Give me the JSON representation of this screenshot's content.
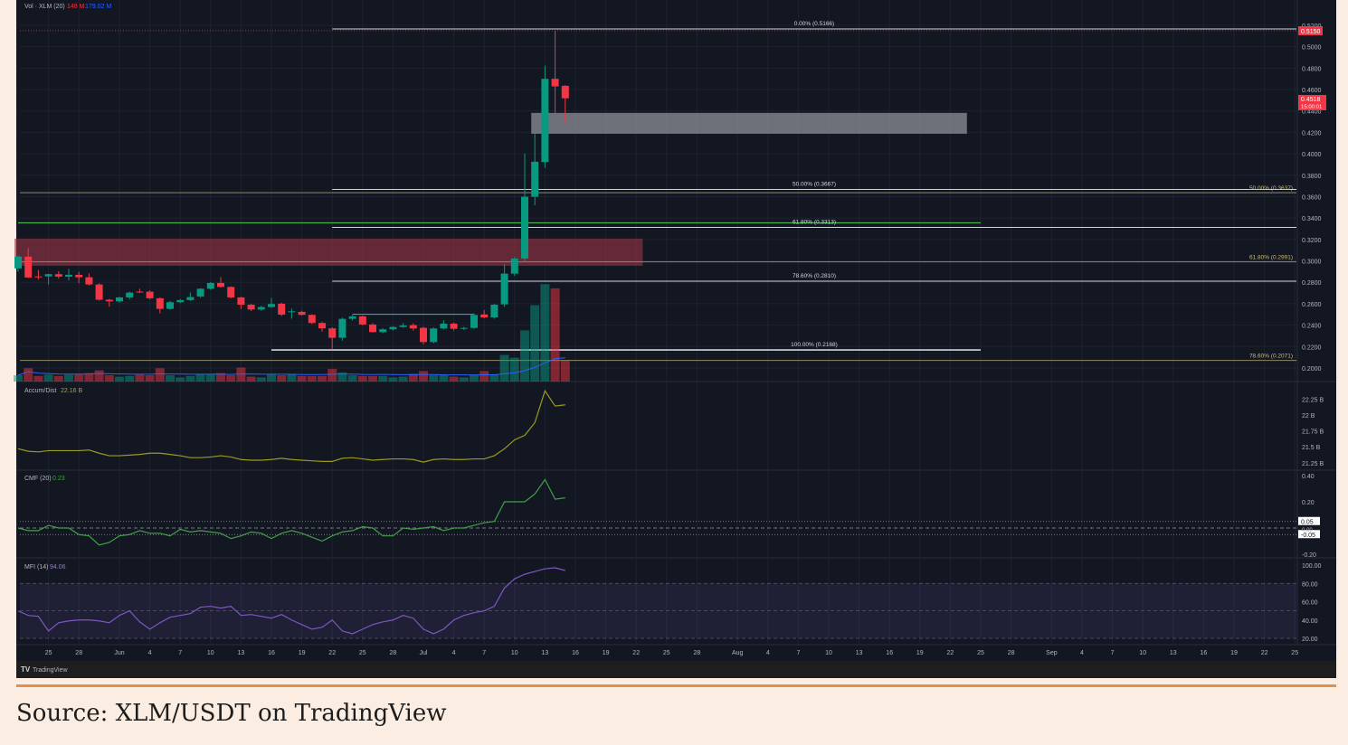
{
  "colors": {
    "up": "#089981",
    "down": "#f23645",
    "background": "#131722",
    "grid": "#1e2230",
    "axis_text": "#b2b5be",
    "fib": "#d1d4dc",
    "fib2": "#c9bc77",
    "volume_ma": "#2962ff",
    "ad_line": "#9a9a1f",
    "cmf_line": "#43a047",
    "mfi_line": "#7e57c2",
    "caption_rule": "#e0914a"
  },
  "legend": {
    "volume": {
      "label": "Vol · XLM (20)",
      "value": "148 M",
      "ma_value": "179.02 M"
    },
    "accum_dist": {
      "label": "Accum/Dist",
      "value": "22.16 B"
    },
    "cmf": {
      "label": "CMF (20)",
      "value": "0.23"
    },
    "mfi": {
      "label": "MFI (14)",
      "value": "94.06"
    }
  },
  "price_badges": {
    "high": "0.5150",
    "last": "0.4518",
    "countdown": "15:00:01"
  },
  "branding": "TradingView",
  "caption": "Source: XLM/USDT on TradingView",
  "chart_data": {
    "type": "candlestick",
    "symbol": "XLM/USDT",
    "price_axis": {
      "ticks": [
        "0.5200",
        "0.5000",
        "0.4800",
        "0.4600",
        "0.4400",
        "0.4200",
        "0.4000",
        "0.3800",
        "0.3600",
        "0.3400",
        "0.3200",
        "0.3000",
        "0.2800",
        "0.2600",
        "0.2400",
        "0.2200",
        "0.2000"
      ],
      "range": [
        0.19,
        0.525
      ]
    },
    "time_axis": [
      {
        "label": "22",
        "date": "05-22"
      },
      {
        "label": "25",
        "date": "05-25"
      },
      {
        "label": "28",
        "date": "05-28"
      },
      {
        "label": "Jun",
        "date": "06-01"
      },
      {
        "label": "4",
        "date": "06-04"
      },
      {
        "label": "7",
        "date": "06-07"
      },
      {
        "label": "10",
        "date": "06-10"
      },
      {
        "label": "13",
        "date": "06-13"
      },
      {
        "label": "16",
        "date": "06-16"
      },
      {
        "label": "19",
        "date": "06-19"
      },
      {
        "label": "22",
        "date": "06-22"
      },
      {
        "label": "25",
        "date": "06-25"
      },
      {
        "label": "28",
        "date": "06-28"
      },
      {
        "label": "Jul",
        "date": "07-01"
      },
      {
        "label": "4",
        "date": "07-04"
      },
      {
        "label": "7",
        "date": "07-07"
      },
      {
        "label": "10",
        "date": "07-10"
      },
      {
        "label": "13",
        "date": "07-13"
      },
      {
        "label": "16",
        "date": "07-16"
      },
      {
        "label": "19",
        "date": "07-19"
      },
      {
        "label": "22",
        "date": "07-22"
      },
      {
        "label": "25",
        "date": "07-25"
      },
      {
        "label": "28",
        "date": "07-28"
      },
      {
        "label": "Aug",
        "date": "08-01"
      },
      {
        "label": "4",
        "date": "08-04"
      },
      {
        "label": "7",
        "date": "08-07"
      },
      {
        "label": "10",
        "date": "08-10"
      },
      {
        "label": "13",
        "date": "08-13"
      },
      {
        "label": "16",
        "date": "08-16"
      },
      {
        "label": "19",
        "date": "08-19"
      },
      {
        "label": "22",
        "date": "08-22"
      },
      {
        "label": "25",
        "date": "08-25"
      },
      {
        "label": "28",
        "date": "08-28"
      },
      {
        "label": "Sep",
        "date": "09-01"
      },
      {
        "label": "4",
        "date": "09-04"
      },
      {
        "label": "7",
        "date": "09-07"
      },
      {
        "label": "10",
        "date": "09-10"
      },
      {
        "label": "13",
        "date": "09-13"
      },
      {
        "label": "16",
        "date": "09-16"
      },
      {
        "label": "19",
        "date": "09-19"
      },
      {
        "label": "22",
        "date": "09-22"
      },
      {
        "label": "25",
        "date": "09-25"
      }
    ],
    "candles_columns": [
      "date",
      "open",
      "high",
      "low",
      "close",
      "volume_M"
    ],
    "candles": [
      [
        "05-22",
        0.293,
        0.305,
        0.29,
        0.304,
        45
      ],
      [
        "05-23",
        0.304,
        0.312,
        0.284,
        0.2845,
        95
      ],
      [
        "05-24",
        0.2855,
        0.2915,
        0.2825,
        0.2847,
        40
      ],
      [
        "05-25",
        0.2855,
        0.288,
        0.2777,
        0.2876,
        50
      ],
      [
        "05-26",
        0.2876,
        0.2904,
        0.2834,
        0.2853,
        40
      ],
      [
        "05-27",
        0.2853,
        0.2927,
        0.2817,
        0.287,
        50
      ],
      [
        "05-28",
        0.287,
        0.2898,
        0.2791,
        0.2847,
        55
      ],
      [
        "05-29",
        0.2847,
        0.2884,
        0.277,
        0.278,
        60
      ],
      [
        "05-30",
        0.278,
        0.279,
        0.263,
        0.2637,
        80
      ],
      [
        "05-31",
        0.2637,
        0.2645,
        0.2572,
        0.2622,
        45
      ],
      [
        "06-01",
        0.2622,
        0.2665,
        0.261,
        0.2659,
        35
      ],
      [
        "06-02",
        0.2659,
        0.2712,
        0.264,
        0.2704,
        40
      ],
      [
        "06-03",
        0.2713,
        0.274,
        0.27,
        0.271,
        50
      ],
      [
        "06-04",
        0.2713,
        0.2725,
        0.264,
        0.2651,
        45
      ],
      [
        "06-05",
        0.2651,
        0.266,
        0.251,
        0.2552,
        95
      ],
      [
        "06-06",
        0.2552,
        0.2625,
        0.2545,
        0.2614,
        45
      ],
      [
        "06-07",
        0.2614,
        0.2645,
        0.2605,
        0.2634,
        30
      ],
      [
        "06-08",
        0.2634,
        0.2705,
        0.2625,
        0.2662,
        40
      ],
      [
        "06-09",
        0.2668,
        0.2745,
        0.2655,
        0.274,
        55
      ],
      [
        "06-10",
        0.274,
        0.2802,
        0.273,
        0.2794,
        55
      ],
      [
        "06-11",
        0.2794,
        0.2848,
        0.275,
        0.2757,
        60
      ],
      [
        "06-12",
        0.2757,
        0.2762,
        0.265,
        0.2659,
        45
      ],
      [
        "06-13",
        0.2659,
        0.2665,
        0.255,
        0.2591,
        100
      ],
      [
        "06-14",
        0.2591,
        0.2598,
        0.253,
        0.2546,
        35
      ],
      [
        "06-15",
        0.2546,
        0.258,
        0.2535,
        0.2569,
        30
      ],
      [
        "06-16",
        0.2569,
        0.2655,
        0.256,
        0.2597,
        55
      ],
      [
        "06-17",
        0.26,
        0.261,
        0.2485,
        0.2498,
        45
      ],
      [
        "06-18",
        0.2524,
        0.2555,
        0.246,
        0.2529,
        55
      ],
      [
        "06-19",
        0.2524,
        0.2535,
        0.249,
        0.2496,
        40
      ],
      [
        "06-20",
        0.2496,
        0.25,
        0.241,
        0.242,
        40
      ],
      [
        "06-21",
        0.242,
        0.2432,
        0.234,
        0.237,
        40
      ],
      [
        "06-22",
        0.237,
        0.238,
        0.2171,
        0.2282,
        90
      ],
      [
        "06-23",
        0.2282,
        0.247,
        0.2255,
        0.2459,
        65
      ],
      [
        "06-24",
        0.2459,
        0.2495,
        0.2445,
        0.2482,
        45
      ],
      [
        "06-25",
        0.2482,
        0.2488,
        0.24,
        0.2406,
        40
      ],
      [
        "06-26",
        0.2406,
        0.242,
        0.233,
        0.2335,
        40
      ],
      [
        "06-27",
        0.2335,
        0.2372,
        0.2325,
        0.2361,
        40
      ],
      [
        "06-28",
        0.2361,
        0.239,
        0.235,
        0.2383,
        30
      ],
      [
        "06-29",
        0.2383,
        0.242,
        0.2375,
        0.2397,
        35
      ],
      [
        "06-30",
        0.24,
        0.2418,
        0.235,
        0.2369,
        55
      ],
      [
        "07-01",
        0.2375,
        0.2385,
        0.222,
        0.2242,
        75
      ],
      [
        "07-02",
        0.2242,
        0.2378,
        0.223,
        0.2369,
        45
      ],
      [
        "07-03",
        0.2369,
        0.2445,
        0.236,
        0.2414,
        45
      ],
      [
        "07-04",
        0.2414,
        0.2425,
        0.235,
        0.2366,
        35
      ],
      [
        "07-05",
        0.2366,
        0.2385,
        0.2355,
        0.2374,
        30
      ],
      [
        "07-06",
        0.2374,
        0.251,
        0.2365,
        0.2495,
        50
      ],
      [
        "07-07",
        0.25,
        0.254,
        0.2465,
        0.2472,
        75
      ],
      [
        "07-08",
        0.2472,
        0.2597,
        0.246,
        0.2591,
        50
      ],
      [
        "07-09",
        0.2594,
        0.2969,
        0.257,
        0.2881,
        190
      ],
      [
        "07-10",
        0.2881,
        0.3035,
        0.286,
        0.3022,
        170
      ],
      [
        "07-11",
        0.3022,
        0.4002,
        0.299,
        0.3599,
        365
      ],
      [
        "07-12",
        0.3599,
        0.4185,
        0.352,
        0.3926,
        545
      ],
      [
        "07-13",
        0.3923,
        0.4823,
        0.387,
        0.47,
        695
      ],
      [
        "07-14",
        0.47,
        0.515,
        0.4382,
        0.4629,
        665
      ],
      [
        "07-15",
        0.4635,
        0.464,
        0.4297,
        0.4518,
        148
      ]
    ],
    "fib_retracement_1": {
      "from": "06-22",
      "levels": [
        {
          "label": "0.00% (0.5166)",
          "price": 0.5166
        },
        {
          "label": "50.00% (0.3667)",
          "price": 0.3667
        },
        {
          "label": "61.80% (0.3313)",
          "price": 0.3313
        },
        {
          "label": "78.60% (0.2810)",
          "price": 0.281
        },
        {
          "label": "100.00% (0.2168)",
          "price": 0.2168,
          "from": "06-16",
          "to": "08-25"
        }
      ]
    },
    "fib_retracement_2": {
      "levels": [
        {
          "label": "50.00% (0.3637)",
          "price": 0.3637
        },
        {
          "label": "61.80% (0.2991)",
          "price": 0.2991
        },
        {
          "label": "78.60% (0.2071)",
          "price": 0.2071
        }
      ]
    },
    "zones": [
      {
        "name": "supply-zone",
        "from": "05-22",
        "to": "07-23",
        "top": 0.3208,
        "bottom": 0.2954,
        "color": "rgba(150,52,66,0.62)"
      },
      {
        "name": "gray-zone",
        "from": "07-12",
        "to": "08-24",
        "top": 0.4382,
        "bottom": 0.4187,
        "color": "rgba(150,152,158,0.7)"
      }
    ],
    "horizontal_lines": [
      {
        "name": "green-level-line",
        "price": 0.3355,
        "from": "05-22",
        "to": "08-25",
        "color": "#4caf50"
      },
      {
        "name": "range-high-line",
        "price": 0.2502,
        "from": "06-24",
        "to": "07-06",
        "color": "#2ba3c9"
      }
    ],
    "accum_dist": {
      "axis": [
        "22.25 B",
        "22 B",
        "21.75 B",
        "21.5 B",
        "21.25 B"
      ],
      "values_B": [
        21.47,
        21.43,
        21.42,
        21.44,
        21.44,
        21.44,
        21.44,
        21.45,
        21.4,
        21.36,
        21.36,
        21.37,
        21.38,
        21.4,
        21.4,
        21.38,
        21.36,
        21.33,
        21.33,
        21.34,
        21.36,
        21.34,
        21.3,
        21.29,
        21.29,
        21.3,
        21.32,
        21.3,
        21.29,
        21.28,
        21.27,
        21.27,
        21.32,
        21.33,
        21.31,
        21.29,
        21.3,
        21.31,
        21.31,
        21.3,
        21.26,
        21.3,
        21.31,
        21.3,
        21.3,
        21.31,
        21.31,
        21.36,
        21.47,
        21.61,
        21.68,
        21.88,
        22.38,
        22.14,
        22.16
      ]
    },
    "cmf": {
      "axis": [
        "0.40",
        "0.20",
        "-0.20"
      ],
      "badges": [
        "0.05",
        "-0.05"
      ],
      "zero_label": "0.00",
      "values": [
        0.0,
        -0.02,
        -0.02,
        0.02,
        0.0,
        0.0,
        -0.05,
        -0.06,
        -0.13,
        -0.11,
        -0.06,
        -0.05,
        -0.02,
        -0.04,
        -0.04,
        -0.06,
        -0.01,
        -0.03,
        -0.02,
        -0.03,
        -0.04,
        -0.08,
        -0.06,
        -0.03,
        -0.04,
        -0.08,
        -0.04,
        -0.02,
        -0.04,
        -0.07,
        -0.1,
        -0.06,
        -0.03,
        -0.02,
        0.01,
        0.0,
        -0.06,
        -0.06,
        0.0,
        -0.01,
        0.0,
        0.01,
        -0.02,
        0.0,
        0.0,
        0.02,
        0.04,
        0.05,
        0.2,
        0.2,
        0.2,
        0.26,
        0.37,
        0.22,
        0.23
      ]
    },
    "mfi": {
      "axis": [
        "100.00",
        "80.00",
        "60.00",
        "40.00",
        "20.00"
      ],
      "values": [
        50,
        45,
        44,
        28,
        37,
        39,
        40,
        40,
        39,
        37,
        45,
        50,
        38,
        30,
        37,
        43,
        45,
        47,
        54,
        55,
        53,
        55,
        45,
        46,
        44,
        42,
        46,
        40,
        35,
        30,
        32,
        40,
        28,
        25,
        30,
        35,
        38,
        40,
        45,
        42,
        30,
        25,
        30,
        40,
        45,
        48,
        50,
        55,
        75,
        85,
        90,
        93,
        96,
        97,
        94.06
      ]
    }
  }
}
